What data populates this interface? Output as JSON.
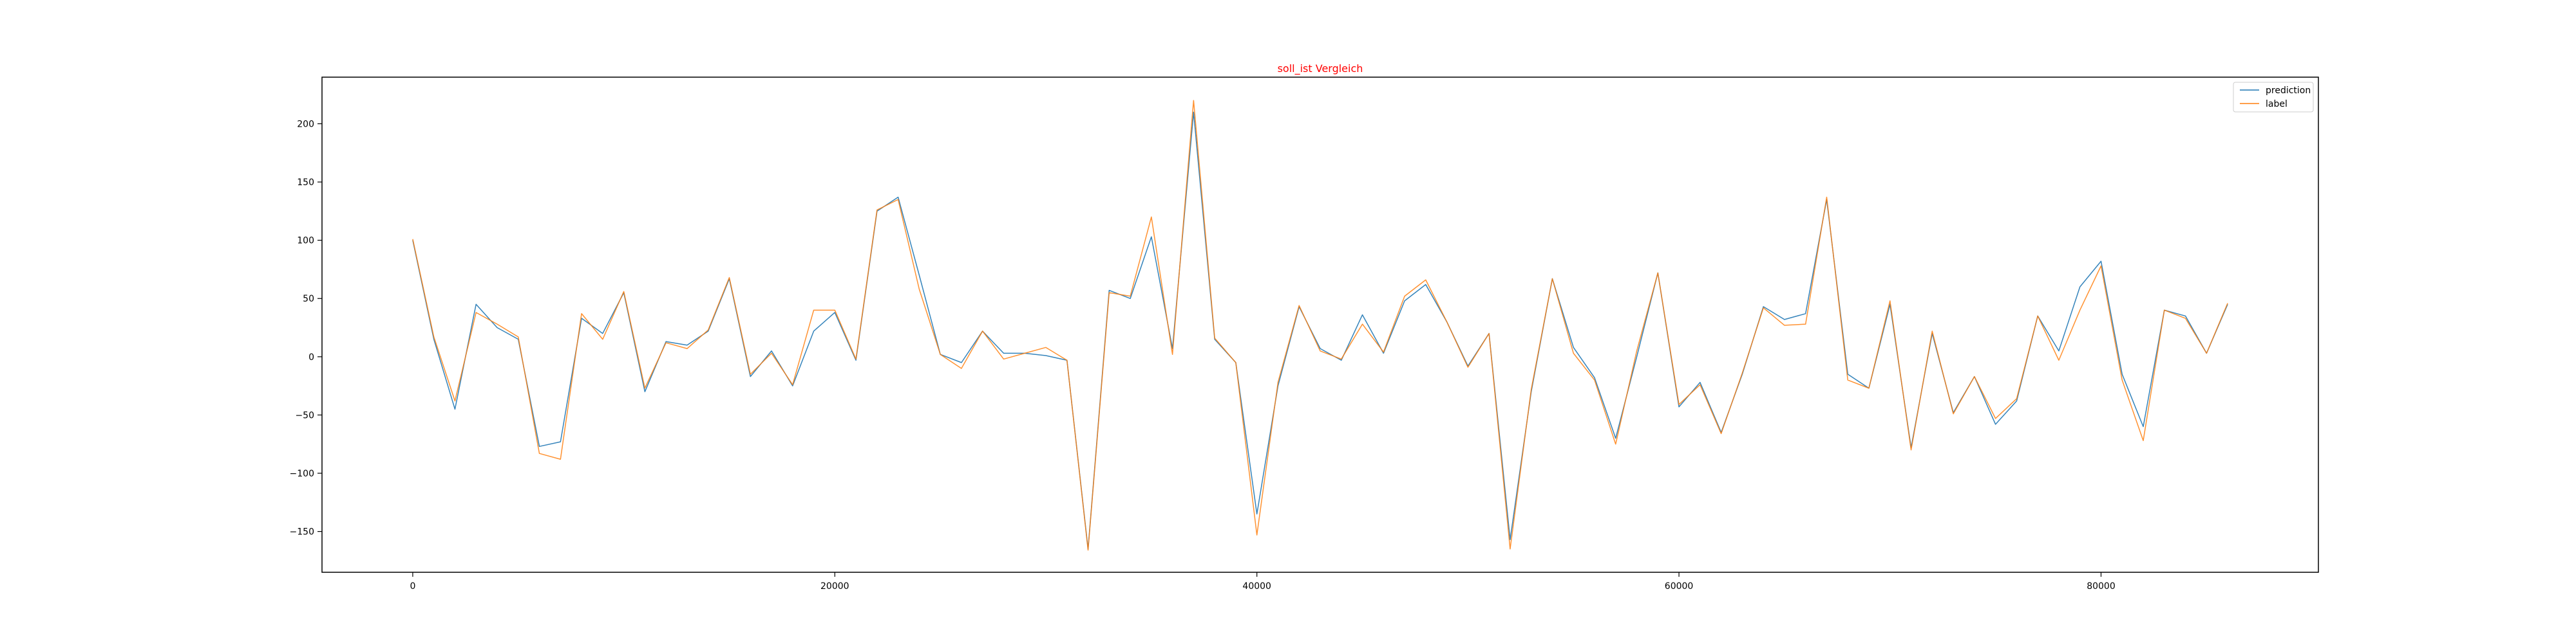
{
  "chart_data": {
    "type": "line",
    "title": "soll_ist Vergleich",
    "xlabel": "",
    "ylabel": "",
    "xlim": [
      -4300,
      90300
    ],
    "ylim": [
      -185,
      240
    ],
    "xticks": [
      0,
      20000,
      40000,
      60000,
      80000
    ],
    "yticks": [
      -150,
      -100,
      -50,
      0,
      50,
      100,
      150,
      200
    ],
    "grid": false,
    "legend_position": "top-right",
    "colors": {
      "title": "#ff0000",
      "prediction": "#1f77b4",
      "label": "#ff7f0e"
    },
    "x": [
      0,
      1000,
      2000,
      3000,
      4000,
      5000,
      6000,
      7000,
      8000,
      9000,
      10000,
      11000,
      12000,
      13000,
      14000,
      15000,
      16000,
      17000,
      18000,
      19000,
      20000,
      21000,
      22000,
      23000,
      24000,
      25000,
      26000,
      27000,
      28000,
      29000,
      30000,
      31000,
      32000,
      33000,
      34000,
      35000,
      36000,
      37000,
      38000,
      39000,
      40000,
      41000,
      42000,
      43000,
      44000,
      45000,
      46000,
      47000,
      48000,
      49000,
      50000,
      51000,
      52000,
      53000,
      54000,
      55000,
      56000,
      57000,
      58000,
      59000,
      60000,
      61000,
      62000,
      63000,
      64000,
      65000,
      66000,
      67000,
      68000,
      69000,
      70000,
      71000,
      72000,
      73000,
      74000,
      75000,
      76000,
      77000,
      78000,
      79000,
      80000,
      81000,
      82000,
      83000,
      84000,
      85000,
      86000
    ],
    "series": [
      {
        "name": "prediction",
        "values": [
          100,
          15,
          -45,
          45,
          25,
          15,
          -77,
          -73,
          33,
          20,
          55,
          -30,
          13,
          10,
          22,
          67,
          -17,
          5,
          -25,
          22,
          38,
          -3,
          125,
          137,
          70,
          2,
          -5,
          22,
          3,
          3,
          1,
          -3,
          -165,
          57,
          50,
          103,
          7,
          210,
          15,
          -5,
          -135,
          -25,
          43,
          7,
          -3,
          36,
          3,
          48,
          62,
          30,
          -8,
          20,
          -157,
          -30,
          67,
          8,
          -18,
          -70,
          0,
          72,
          -43,
          -22,
          -65,
          -15,
          43,
          32,
          37,
          135,
          -15,
          -27,
          45,
          -78,
          20,
          -48,
          -17,
          -58,
          -38,
          35,
          5,
          60,
          82,
          -15,
          -60,
          40,
          35,
          3,
          45
        ]
      },
      {
        "name": "label",
        "values": [
          101,
          17,
          -38,
          38,
          28,
          17,
          -83,
          -88,
          37,
          15,
          56,
          -27,
          12,
          7,
          23,
          68,
          -15,
          3,
          -24,
          40,
          40,
          -2,
          126,
          135,
          58,
          2,
          -10,
          22,
          -2,
          3,
          8,
          -3,
          -166,
          55,
          52,
          120,
          2,
          220,
          16,
          -5,
          -153,
          -22,
          44,
          5,
          -2,
          28,
          4,
          52,
          66,
          30,
          -9,
          20,
          -165,
          -28,
          67,
          3,
          -20,
          -75,
          5,
          72,
          -41,
          -24,
          -66,
          -14,
          42,
          27,
          28,
          137,
          -20,
          -27,
          48,
          -80,
          22,
          -49,
          -17,
          -53,
          -36,
          35,
          -3,
          40,
          78,
          -20,
          -72,
          40,
          33,
          3,
          46
        ]
      }
    ]
  }
}
